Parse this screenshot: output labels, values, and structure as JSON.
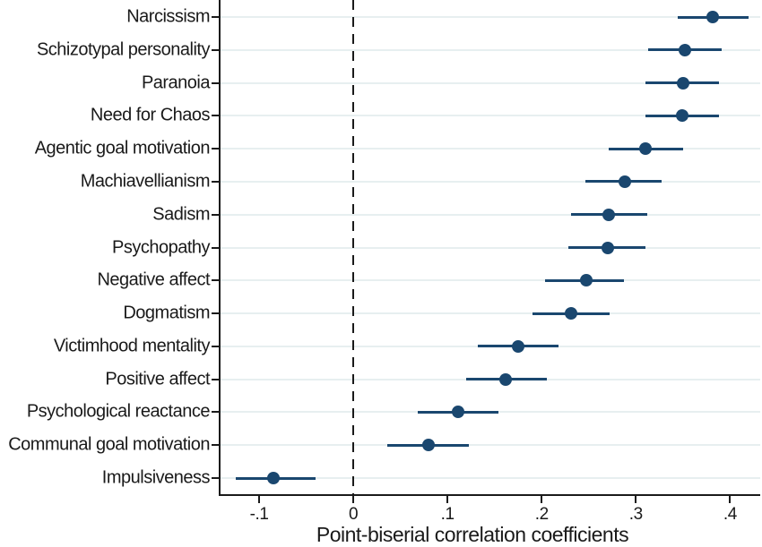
{
  "figure": {
    "xlabel": "Point-biserial correlation coefficients"
  },
  "chart_data": {
    "type": "scatter",
    "subtype": "horizontal-forest-plot-with-ci",
    "title": "",
    "xlabel": "Point-biserial correlation coefficients",
    "ylabel": "",
    "categories": [
      "Narcissism",
      "Schizotypal personality",
      "Paranoia",
      "Need for Chaos",
      "Agentic goal motivation",
      "Machiavellianism",
      "Sadism",
      "Psychopathy",
      "Negative affect",
      "Dogmatism",
      "Victimhood mentality",
      "Positive affect",
      "Psychological reactance",
      "Communal goal motivation",
      "Impulsiveness"
    ],
    "series": [
      {
        "name": "Point-biserial correlation coefficient",
        "values": [
          0.382,
          0.352,
          0.35,
          0.349,
          0.31,
          0.288,
          0.271,
          0.27,
          0.247,
          0.231,
          0.175,
          0.162,
          0.111,
          0.08,
          -0.085
        ],
        "ci_low": [
          0.344,
          0.313,
          0.31,
          0.31,
          0.271,
          0.246,
          0.231,
          0.228,
          0.204,
          0.19,
          0.132,
          0.12,
          0.068,
          0.036,
          -0.125
        ],
        "ci_high": [
          0.42,
          0.391,
          0.388,
          0.388,
          0.35,
          0.327,
          0.312,
          0.31,
          0.287,
          0.272,
          0.218,
          0.205,
          0.154,
          0.123,
          -0.04
        ]
      }
    ],
    "xlim": [
      -0.141,
      0.432
    ],
    "xticks": [
      -0.1,
      0,
      0.1,
      0.2,
      0.3,
      0.4
    ],
    "xtick_labels": [
      "-.1",
      "0",
      ".1",
      ".2",
      ".3",
      ".4"
    ],
    "grid": "horizontal-row-lines",
    "reference_line_x": 0,
    "legend_position": "none",
    "colors": {
      "marker": "#1a476f",
      "ci_line": "#1a476f",
      "gridline": "#e7eff0",
      "axis": "#1a1a1a",
      "reference_line": "#1a1a1a",
      "background": "#ffffff"
    }
  }
}
